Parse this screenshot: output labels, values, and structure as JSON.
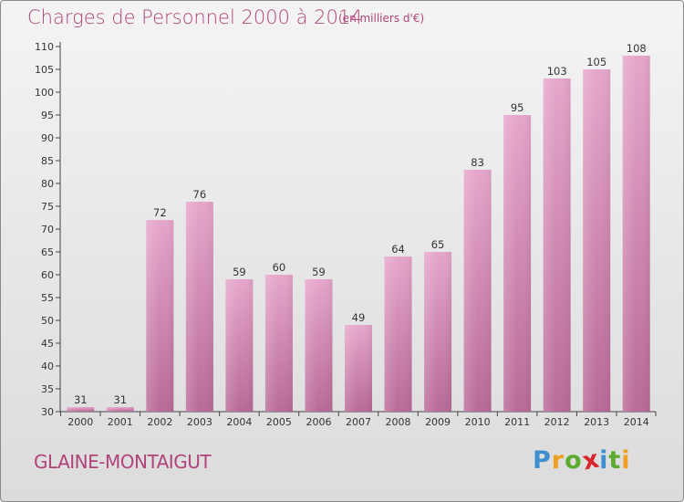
{
  "chart_data": {
    "type": "bar",
    "title": "Charges de Personnel 2000 à 2014",
    "subtitle": "(en milliers d'€)",
    "categories": [
      "2000",
      "2001",
      "2002",
      "2003",
      "2004",
      "2005",
      "2006",
      "2007",
      "2008",
      "2009",
      "2010",
      "2011",
      "2012",
      "2013",
      "2014"
    ],
    "values": [
      31,
      31,
      72,
      76,
      59,
      60,
      59,
      49,
      64,
      65,
      83,
      95,
      103,
      105,
      108
    ],
    "ylim": [
      30,
      110
    ],
    "yticks": [
      30,
      35,
      40,
      45,
      50,
      55,
      60,
      65,
      70,
      75,
      80,
      85,
      90,
      95,
      100,
      105,
      110
    ],
    "grid": false,
    "bar_color": "#d889b4"
  },
  "footer": {
    "location": "GLAINE-MONTAIGUT",
    "brand": "Proxiti",
    "brand_letters": [
      {
        "ch": "P",
        "color": "#3f8fd0"
      },
      {
        "ch": "r",
        "color": "#f0a020"
      },
      {
        "ch": "o",
        "color": "#5aab2e"
      },
      {
        "ch": "x",
        "color": "#d8262e"
      },
      {
        "ch": "i",
        "color": "#3f8fd0"
      },
      {
        "ch": "t",
        "color": "#5aab2e"
      },
      {
        "ch": "i",
        "color": "#f0a020"
      }
    ]
  }
}
